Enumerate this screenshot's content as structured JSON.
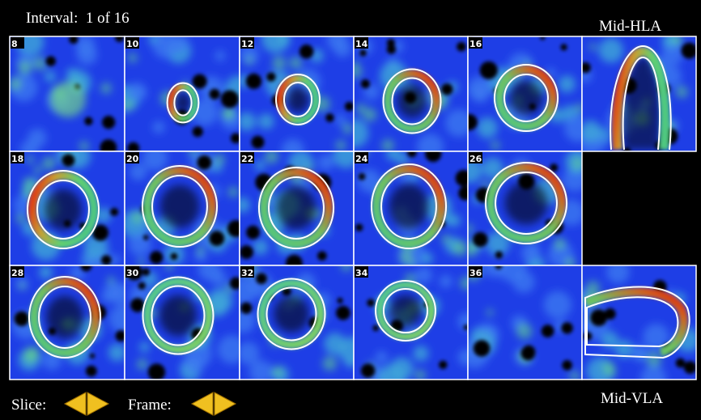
{
  "header": {
    "interval": "Interval:  1 of 16",
    "hla_label": "Mid-HLA",
    "vla_label": "Mid-VLA"
  },
  "tiles": [
    {
      "slice": "8"
    },
    {
      "slice": "10"
    },
    {
      "slice": "12"
    },
    {
      "slice": "14"
    },
    {
      "slice": "16"
    },
    {
      "slice": "18"
    },
    {
      "slice": "20"
    },
    {
      "slice": "22"
    },
    {
      "slice": "24"
    },
    {
      "slice": "26"
    },
    {
      "slice": "28"
    },
    {
      "slice": "30"
    },
    {
      "slice": "32"
    },
    {
      "slice": "34"
    },
    {
      "slice": "36"
    }
  ],
  "controls": {
    "slice": "Slice:",
    "frame": "Frame:"
  }
}
